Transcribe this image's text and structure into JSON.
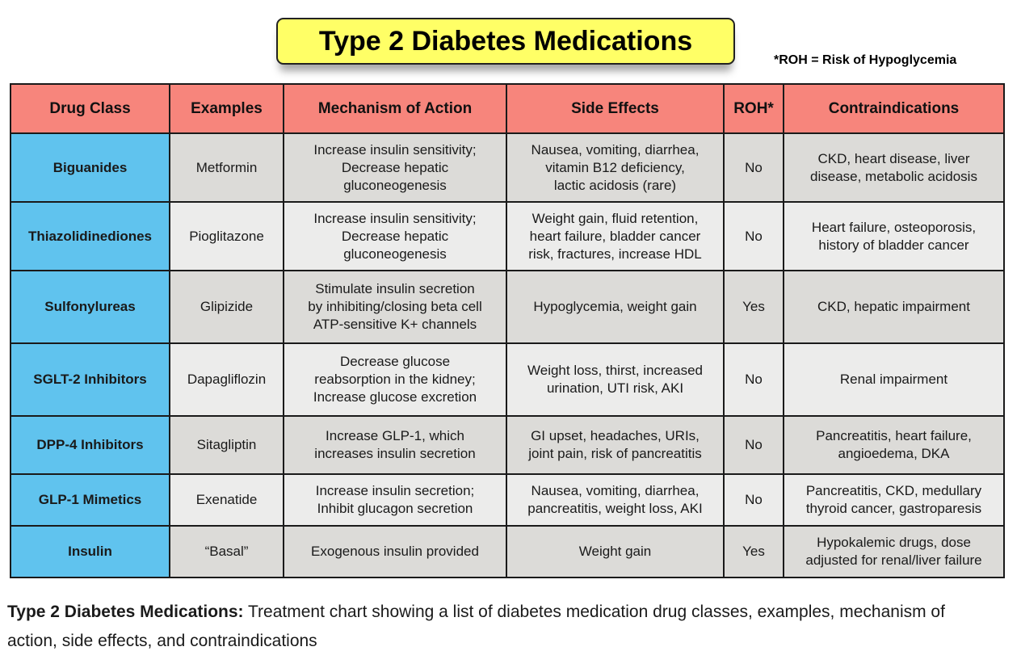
{
  "title": "Type 2 Diabetes Medications",
  "legend_note": "*ROH = Risk of Hypoglycemia",
  "table": {
    "headers": [
      "Drug Class",
      "Examples",
      "Mechanism of Action",
      "Side Effects",
      "ROH*",
      "Contraindications"
    ],
    "rows": [
      {
        "drug_class": "Biguanides",
        "example": "Metformin",
        "mechanism": "Increase insulin sensitivity;\nDecrease hepatic\ngluconeogenesis",
        "side_effects": "Nausea, vomiting, diarrhea,\nvitamin B12 deficiency,\nlactic acidosis (rare)",
        "roh": "No",
        "contraindications": "CKD, heart disease, liver\ndisease, metabolic acidosis"
      },
      {
        "drug_class": "Thiazolidinediones",
        "example": "Pioglitazone",
        "mechanism": "Increase insulin sensitivity;\nDecrease hepatic\ngluconeogenesis",
        "side_effects": "Weight gain, fluid retention,\nheart failure, bladder cancer\nrisk, fractures, increase HDL",
        "roh": "No",
        "contraindications": "Heart failure, osteoporosis,\nhistory of bladder cancer"
      },
      {
        "drug_class": "Sulfonylureas",
        "example": "Glipizide",
        "mechanism": "Stimulate insulin secretion\nby inhibiting/closing beta cell\nATP-sensitive K+ channels",
        "side_effects": "Hypoglycemia, weight gain",
        "roh": "Yes",
        "contraindications": "CKD, hepatic impairment"
      },
      {
        "drug_class": "SGLT-2 Inhibitors",
        "example": "Dapagliflozin",
        "mechanism": "Decrease glucose\nreabsorption in the kidney;\nIncrease glucose excretion",
        "side_effects": "Weight loss, thirst, increased\nurination, UTI risk, AKI",
        "roh": "No",
        "contraindications": "Renal impairment"
      },
      {
        "drug_class": "DPP-4 Inhibitors",
        "example": "Sitagliptin",
        "mechanism": "Increase GLP-1, which\nincreases insulin secretion",
        "side_effects": "GI upset, headaches, URIs,\njoint pain, risk of pancreatitis",
        "roh": "No",
        "contraindications": "Pancreatitis, heart failure,\nangioedema, DKA"
      },
      {
        "drug_class": "GLP-1 Mimetics",
        "example": "Exenatide",
        "mechanism": "Increase insulin secretion;\nInhibit glucagon secretion",
        "side_effects": "Nausea, vomiting, diarrhea,\npancreatitis, weight loss, AKI",
        "roh": "No",
        "contraindications": "Pancreatitis, CKD, medullary\nthyroid cancer, gastroparesis"
      },
      {
        "drug_class": "Insulin",
        "example": "“Basal”",
        "mechanism": "Exogenous insulin provided",
        "side_effects": "Weight gain",
        "roh": "Yes",
        "contraindications": "Hypokalemic drugs, dose\nadjusted for renal/liver failure"
      }
    ]
  },
  "caption": {
    "bold": "Type 2 Diabetes Medications:",
    "text": " Treatment chart showing a list of diabetes medication drug classes, examples, mechanism of action, side effects, and contraindications"
  }
}
